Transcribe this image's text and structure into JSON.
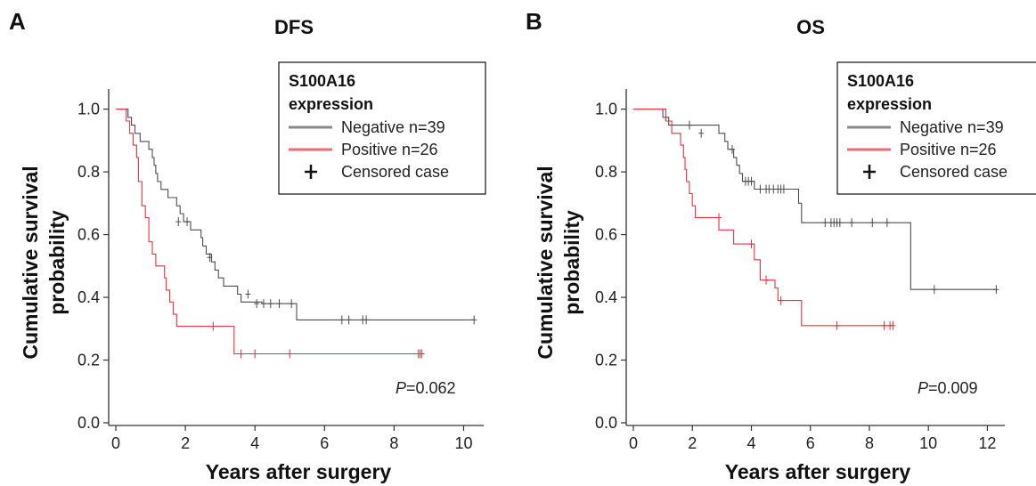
{
  "chart_data": [
    {
      "type": "line",
      "panel_label": "A",
      "title": "DFS",
      "xlabel": "Years after surgery",
      "ylabel": [
        "Cumulative survival",
        "probability"
      ],
      "xlim": [
        0,
        10.5
      ],
      "ylim": [
        0,
        1.05
      ],
      "xticks": [
        0,
        2,
        4,
        6,
        8,
        10
      ],
      "yticks": [
        "0.0",
        "0.2",
        "0.4",
        "0.6",
        "0.8",
        "1.0"
      ],
      "p_value": {
        "label": "P",
        "value": "=0.062"
      },
      "legend": {
        "title_line1": "S100A16",
        "title_line2": "expression",
        "entries": [
          "Negative n=39",
          "Positive n=26",
          "Censored case"
        ],
        "placement": "top-right"
      },
      "series": [
        {
          "name": "Negative n=39",
          "color": "#4d4d4d",
          "steps": [
            [
              0,
              1.0
            ],
            [
              0.35,
              0.974
            ],
            [
              0.45,
              0.949
            ],
            [
              0.55,
              0.923
            ],
            [
              0.7,
              0.897
            ],
            [
              0.95,
              0.872
            ],
            [
              1.05,
              0.846
            ],
            [
              1.1,
              0.821
            ],
            [
              1.15,
              0.795
            ],
            [
              1.2,
              0.769
            ],
            [
              1.3,
              0.744
            ],
            [
              1.5,
              0.718
            ],
            [
              1.75,
              0.692
            ],
            [
              1.85,
              0.667
            ],
            [
              1.95,
              0.641
            ],
            [
              2.15,
              0.615
            ],
            [
              2.45,
              0.59
            ],
            [
              2.5,
              0.564
            ],
            [
              2.6,
              0.538
            ],
            [
              2.75,
              0.513
            ],
            [
              2.85,
              0.487
            ],
            [
              2.95,
              0.462
            ],
            [
              3.1,
              0.436
            ],
            [
              3.5,
              0.41
            ],
            [
              3.6,
              0.385
            ],
            [
              4.2,
              0.38
            ],
            [
              5.2,
              0.328
            ],
            [
              10.3,
              0.328
            ]
          ],
          "censored": [
            [
              1.8,
              0.641
            ],
            [
              2.05,
              0.641
            ],
            [
              2.7,
              0.527
            ],
            [
              3.8,
              0.41
            ],
            [
              4.05,
              0.38
            ],
            [
              4.25,
              0.38
            ],
            [
              4.45,
              0.38
            ],
            [
              4.7,
              0.38
            ],
            [
              5.05,
              0.38
            ],
            [
              6.5,
              0.328
            ],
            [
              6.7,
              0.328
            ],
            [
              7.1,
              0.328
            ],
            [
              7.2,
              0.328
            ],
            [
              10.3,
              0.328
            ]
          ]
        },
        {
          "name": "Positive n=26",
          "color": "#e8323c",
          "steps": [
            [
              0,
              1.0
            ],
            [
              0.3,
              0.962
            ],
            [
              0.4,
              0.923
            ],
            [
              0.5,
              0.885
            ],
            [
              0.6,
              0.846
            ],
            [
              0.65,
              0.769
            ],
            [
              0.75,
              0.692
            ],
            [
              0.85,
              0.654
            ],
            [
              0.95,
              0.577
            ],
            [
              1.05,
              0.538
            ],
            [
              1.15,
              0.5
            ],
            [
              1.4,
              0.462
            ],
            [
              1.45,
              0.423
            ],
            [
              1.55,
              0.385
            ],
            [
              1.65,
              0.346
            ],
            [
              1.75,
              0.308
            ],
            [
              3.4,
              0.22
            ],
            [
              8.8,
              0.22
            ]
          ],
          "censored": [
            [
              2.8,
              0.308
            ],
            [
              3.6,
              0.22
            ],
            [
              4.0,
              0.22
            ],
            [
              5.0,
              0.22
            ],
            [
              8.7,
              0.22
            ],
            [
              8.75,
              0.22
            ],
            [
              8.8,
              0.22
            ]
          ]
        }
      ]
    },
    {
      "type": "line",
      "panel_label": "B",
      "title": "OS",
      "xlabel": "Years after surgery",
      "ylabel": [
        "Cumulative survival",
        "probability"
      ],
      "xlim": [
        0,
        12.5
      ],
      "ylim": [
        0,
        1.05
      ],
      "xticks": [
        0,
        2,
        4,
        6,
        8,
        10,
        12
      ],
      "yticks": [
        "0.0",
        "0.2",
        "0.4",
        "0.6",
        "0.8",
        "1.0"
      ],
      "p_value": {
        "label": "P",
        "value": "=0.009"
      },
      "legend": {
        "title_line1": "S100A16",
        "title_line2": "expression",
        "entries": [
          "Negative n=39",
          "Positive n=26",
          "Censored case"
        ],
        "placement": "top-right"
      },
      "series": [
        {
          "name": "Negative n=39",
          "color": "#4d4d4d",
          "steps": [
            [
              0,
              1.0
            ],
            [
              1.0,
              0.974
            ],
            [
              1.2,
              0.949
            ],
            [
              2.9,
              0.923
            ],
            [
              3.1,
              0.897
            ],
            [
              3.2,
              0.872
            ],
            [
              3.4,
              0.846
            ],
            [
              3.5,
              0.821
            ],
            [
              3.6,
              0.795
            ],
            [
              3.7,
              0.77
            ],
            [
              4.1,
              0.745
            ],
            [
              5.6,
              0.7
            ],
            [
              5.7,
              0.638
            ],
            [
              9.4,
              0.425
            ],
            [
              12.3,
              0.425
            ]
          ],
          "censored": [
            [
              1.9,
              0.949
            ],
            [
              2.3,
              0.923
            ],
            [
              3.35,
              0.872
            ],
            [
              3.8,
              0.77
            ],
            [
              3.9,
              0.77
            ],
            [
              4.0,
              0.77
            ],
            [
              4.3,
              0.745
            ],
            [
              4.5,
              0.745
            ],
            [
              4.6,
              0.745
            ],
            [
              4.75,
              0.745
            ],
            [
              4.9,
              0.745
            ],
            [
              5.0,
              0.745
            ],
            [
              5.1,
              0.745
            ],
            [
              6.5,
              0.638
            ],
            [
              6.7,
              0.638
            ],
            [
              6.8,
              0.638
            ],
            [
              6.9,
              0.638
            ],
            [
              7.0,
              0.638
            ],
            [
              7.4,
              0.638
            ],
            [
              8.1,
              0.638
            ],
            [
              8.6,
              0.638
            ],
            [
              10.2,
              0.425
            ],
            [
              12.3,
              0.425
            ]
          ]
        },
        {
          "name": "Positive n=26",
          "color": "#e8323c",
          "steps": [
            [
              0,
              1.0
            ],
            [
              1.1,
              0.962
            ],
            [
              1.3,
              0.923
            ],
            [
              1.6,
              0.885
            ],
            [
              1.7,
              0.846
            ],
            [
              1.75,
              0.808
            ],
            [
              1.8,
              0.769
            ],
            [
              1.9,
              0.731
            ],
            [
              2.0,
              0.692
            ],
            [
              2.1,
              0.654
            ],
            [
              2.9,
              0.615
            ],
            [
              3.4,
              0.57
            ],
            [
              4.1,
              0.52
            ],
            [
              4.3,
              0.455
            ],
            [
              4.8,
              0.43
            ],
            [
              4.9,
              0.39
            ],
            [
              5.7,
              0.31
            ],
            [
              8.8,
              0.31
            ]
          ],
          "censored": [
            [
              2.9,
              0.654
            ],
            [
              4.0,
              0.57
            ],
            [
              4.5,
              0.455
            ],
            [
              5.0,
              0.39
            ],
            [
              6.9,
              0.31
            ],
            [
              8.5,
              0.31
            ],
            [
              8.7,
              0.31
            ],
            [
              8.8,
              0.31
            ]
          ]
        }
      ]
    }
  ]
}
